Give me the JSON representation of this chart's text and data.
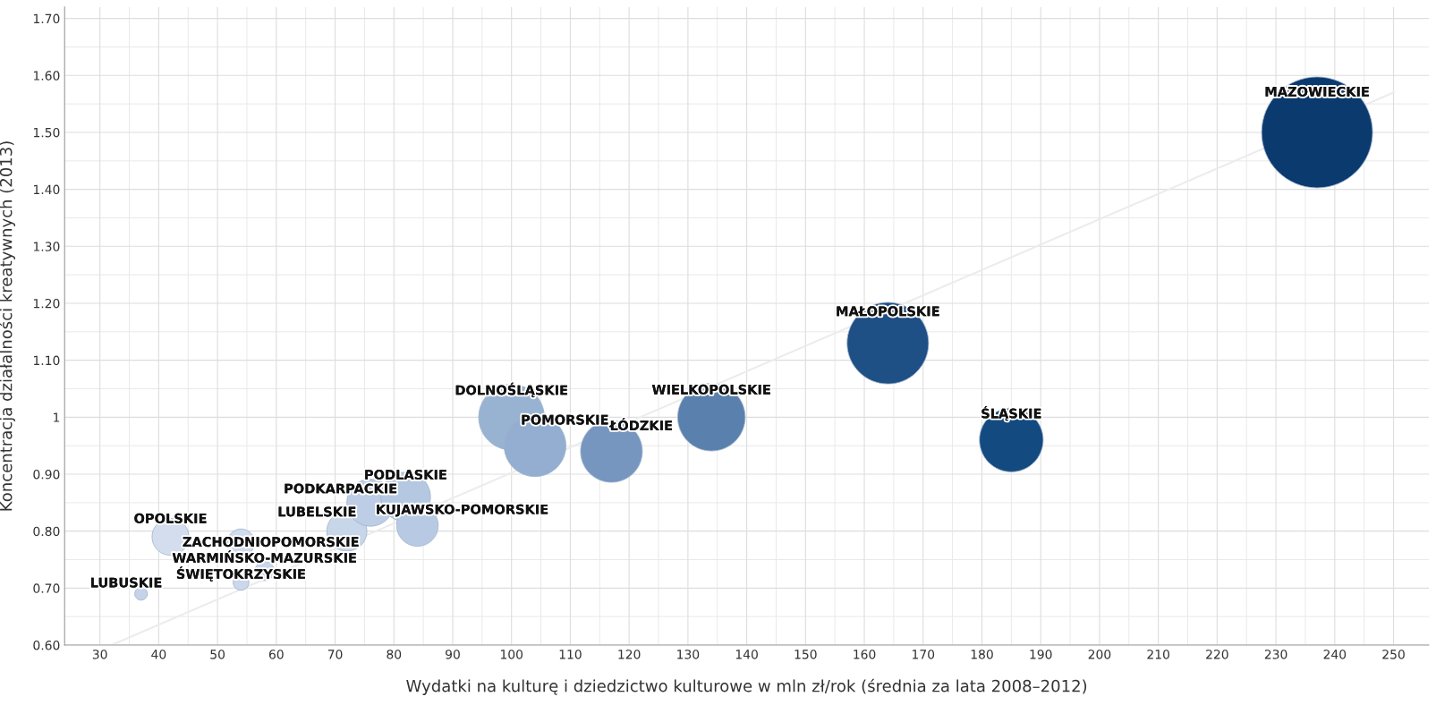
{
  "chart_data": {
    "type": "bubble",
    "xlabel": "Wydatki na kulturę i dziedzictwo kulturowe w mln zł/rok (średnia za lata 2008–2012)",
    "ylabel": "Koncentracja działalności kreatywnych (2013)",
    "xlim": [
      24,
      256
    ],
    "xticks": [
      30,
      40,
      50,
      60,
      70,
      80,
      90,
      100,
      110,
      120,
      130,
      140,
      150,
      160,
      170,
      180,
      190,
      200,
      210,
      220,
      230,
      240,
      250
    ],
    "ylim": [
      0.6,
      1.72
    ],
    "yticks": [
      {
        "value": 0.6,
        "label": "0.60"
      },
      {
        "value": 0.7,
        "label": "0.70"
      },
      {
        "value": 0.8,
        "label": "0.80"
      },
      {
        "value": 0.9,
        "label": "0.90"
      },
      {
        "value": 1.0,
        "label": "1"
      },
      {
        "value": 1.1,
        "label": "1.10"
      },
      {
        "value": 1.2,
        "label": "1.20"
      },
      {
        "value": 1.3,
        "label": "1.30"
      },
      {
        "value": 1.4,
        "label": "1.40"
      },
      {
        "value": 1.5,
        "label": "1.50"
      },
      {
        "value": 1.6,
        "label": "1.60"
      },
      {
        "value": 1.7,
        "label": "1.70"
      }
    ],
    "grid": true,
    "legend": false,
    "annotations": [
      {
        "text": "LUBUSKIE",
        "x": 37,
        "y": 0.69
      },
      {
        "text": "OPOLSKIE",
        "x": 42,
        "y": 0.79
      },
      {
        "text": "ZACHODNIOPOMORSKIE",
        "x": 54,
        "y": 0.78
      },
      {
        "text": "ŚWIĘTOKRZYSKIE",
        "x": 54,
        "y": 0.71
      },
      {
        "text": "WARMIŃSKO-MAZURSKIE",
        "x": 58,
        "y": 0.73
      },
      {
        "text": "LUBELSKIE",
        "x": 72,
        "y": 0.8
      },
      {
        "text": "PODKARPACKIE",
        "x": 76,
        "y": 0.85
      },
      {
        "text": "PODLASKIE",
        "x": 82,
        "y": 0.86
      },
      {
        "text": "KUJAWSKO-POMORSKIE",
        "x": 84,
        "y": 0.81
      },
      {
        "text": "DOLNOŚLĄSKIE",
        "x": 100,
        "y": 1.0
      },
      {
        "text": "POMORSKIE",
        "x": 104,
        "y": 0.95
      },
      {
        "text": "ŁÓDZKIE",
        "x": 117,
        "y": 0.94
      },
      {
        "text": "WIELKOPOLSKIE",
        "x": 134,
        "y": 1.0
      },
      {
        "text": "MAŁOPOLSKIE",
        "x": 164,
        "y": 1.13
      },
      {
        "text": "ŚLĄSKIE",
        "x": 185,
        "y": 0.96
      },
      {
        "text": "MAZOWIECKIE",
        "x": 237,
        "y": 1.5
      }
    ],
    "series": [
      {
        "type": "line",
        "color": "#ececec",
        "x": [
          32,
          250
        ],
        "values": [
          0.6,
          1.57
        ]
      },
      {
        "x": [
          37,
          42,
          54,
          54,
          58,
          72,
          76,
          82,
          84,
          100,
          104,
          117,
          134,
          164,
          185,
          237
        ],
        "values": [
          0.69,
          0.79,
          0.78,
          0.71,
          0.73,
          0.8,
          0.85,
          0.86,
          0.81,
          1.0,
          0.95,
          0.94,
          1.0,
          1.13,
          0.96,
          1.5
        ],
        "sizes": [
          0.013,
          0.11,
          0.06,
          0.02,
          0.03,
          0.13,
          0.18,
          0.2,
          0.14,
          0.35,
          0.31,
          0.31,
          0.37,
          0.54,
          0.33,
          1
        ],
        "colors": [
          "#c5d3e8",
          "#d3ddee",
          "#d0dbec",
          "#cbd7eb",
          "#c9d6ea",
          "#c8d6ea",
          "#bccde5",
          "#b5c8e2",
          "#b8cae3",
          "#98b2d2",
          "#93aed0",
          "#7696bf",
          "#5a80ad",
          "#1e4f85",
          "#134a80",
          "#0b3a6e"
        ]
      }
    ]
  }
}
